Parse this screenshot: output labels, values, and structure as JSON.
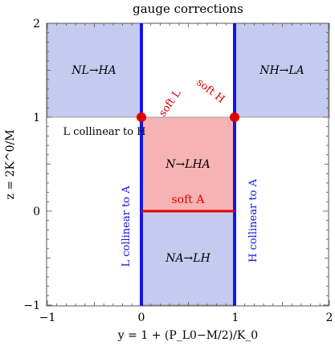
{
  "title": "gauge corrections",
  "xlabel": "y = 1 + (P_L0−M/2)/K_0",
  "ylabel": "z = 2K^0/M",
  "x_ticks": [
    "−1",
    "0",
    "1",
    "2"
  ],
  "y_ticks": [
    "−1",
    "0",
    "1",
    "2"
  ],
  "regions": [
    {
      "label": "NL→HA",
      "x": [
        -1,
        0
      ],
      "y": [
        1,
        2
      ],
      "color": "#c5caef"
    },
    {
      "label": "NH→LA",
      "x": [
        1,
        2
      ],
      "y": [
        1,
        2
      ],
      "color": "#c5caef"
    },
    {
      "label": "N→LHA",
      "x": [
        0,
        1
      ],
      "y": [
        0,
        1
      ],
      "color": "#f7b3b3"
    },
    {
      "label": "NA→LH",
      "x": [
        0,
        1
      ],
      "y": [
        -1,
        0
      ],
      "color": "#c5caef"
    }
  ],
  "lines": {
    "vertical_left_x": 0,
    "vertical_right_x": 1,
    "vertical_color": "#1515e8",
    "soft_A_segment": {
      "x": [
        0,
        1
      ],
      "y": 0,
      "color": "#e00000"
    }
  },
  "points": [
    {
      "name": "soft L",
      "x": 0,
      "y": 1
    },
    {
      "name": "soft H",
      "x": 1,
      "y": 1
    }
  ],
  "annotations": {
    "soft_L": "soft L",
    "soft_H": "soft H",
    "soft_A": "soft A",
    "L_collinear_to_H": "L collinear to H",
    "L_collinear_to_A": "L collinear to A",
    "H_collinear_to_A": "H collinear to A"
  },
  "colors": {
    "blue": "#1515e8",
    "red": "#e00000",
    "region_blue": "#c5caef",
    "region_red": "#f7b3b3"
  }
}
